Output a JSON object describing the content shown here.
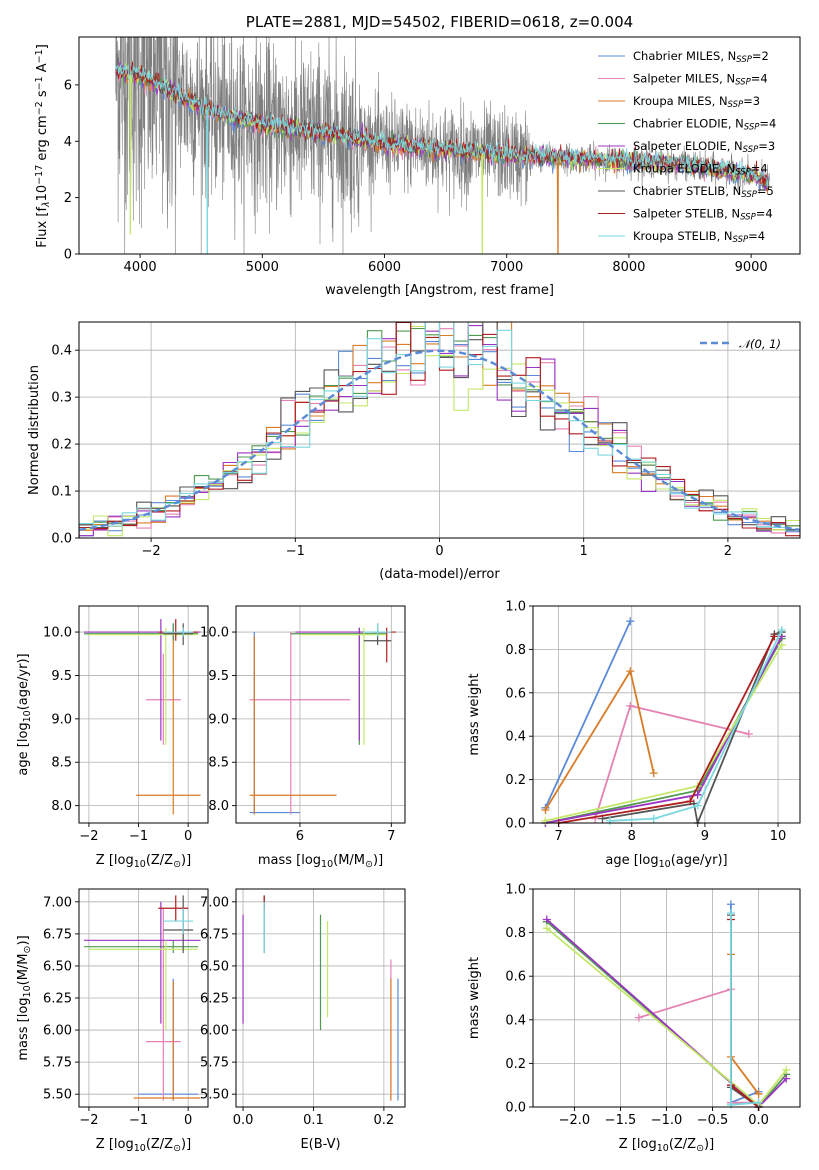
{
  "colors": [
    "#5b8bd6",
    "#e581b4",
    "#d97b27",
    "#4f9a4f",
    "#9b34c4",
    "#c4e86a",
    "#555555",
    "#b01d1d",
    "#7ad8e0"
  ],
  "gray": "#7f7f7f",
  "chart_data": [
    {
      "id": "spectrum",
      "type": "line",
      "title": "PLATE=2881, MJD=54502, FIBERID=0618, z=0.004",
      "xlabel": "wavelength [Angstrom, rest frame]",
      "ylabel": "Flux [f$_\\lambda$10$^{-17}$ erg cm$^{-2}$ s$^{-1}$ A$^{-1}$]",
      "ylabel_parts": {
        "pre": "Flux [f",
        "sub": "λ",
        "mid": "10",
        "sup1": "−17",
        "mid2": " erg cm",
        "sup2": "−2",
        "mid3": " s",
        "sup3": "−1",
        "mid4": " A",
        "sup4": "−1",
        "post": "]"
      },
      "xlim": [
        3500,
        9400
      ],
      "ylim": [
        0,
        7.7
      ],
      "xticks": [
        4000,
        5000,
        6000,
        7000,
        8000,
        9000
      ],
      "yticks": [
        0,
        2,
        4,
        6
      ],
      "legend_position": "top-right",
      "legend": [
        {
          "text": "Chabrier MILES, N",
          "sub": "SSP",
          "post": "=2"
        },
        {
          "text": "Salpeter MILES, N",
          "sub": "SSP",
          "post": "=4"
        },
        {
          "text": "Kroupa MILES, N",
          "sub": "SSP",
          "post": "=3"
        },
        {
          "text": "Chabrier ELODIE, N",
          "sub": "SSP",
          "post": "=4"
        },
        {
          "text": "Salpeter ELODIE, N",
          "sub": "SSP",
          "post": "=3"
        },
        {
          "text": "Kroupa ELODIE, N",
          "sub": "SSP",
          "post": "=4"
        },
        {
          "text": "Chabrier STELIB, N",
          "sub": "SSP",
          "post": "=5"
        },
        {
          "text": "Salpeter STELIB, N",
          "sub": "SSP",
          "post": "=4"
        },
        {
          "text": "Kroupa STELIB, N",
          "sub": "SSP",
          "post": "=4"
        }
      ],
      "continuum": [
        [
          3800,
          6.5
        ],
        [
          3900,
          6.4
        ],
        [
          4000,
          6.3
        ],
        [
          4200,
          5.9
        ],
        [
          4500,
          5.2
        ],
        [
          4800,
          4.8
        ],
        [
          5000,
          4.6
        ],
        [
          5500,
          4.3
        ],
        [
          6000,
          3.9
        ],
        [
          6500,
          3.7
        ],
        [
          7000,
          3.5
        ],
        [
          7500,
          3.4
        ],
        [
          8000,
          3.3
        ],
        [
          8500,
          3.15
        ],
        [
          9000,
          2.8
        ],
        [
          9150,
          2.5
        ]
      ],
      "drops": [
        {
          "x": 3920,
          "y": 0.7,
          "series": 5
        },
        {
          "x": 4550,
          "y": 0,
          "series": 8
        },
        {
          "x": 6800,
          "y": 0,
          "series": 5
        },
        {
          "x": 7420,
          "y": 0,
          "series": 2
        }
      ]
    },
    {
      "id": "residuals",
      "type": "histogram",
      "xlabel": "(data-model)/error",
      "ylabel": "Normed distribution",
      "xlim": [
        -2.5,
        2.5
      ],
      "ylim": [
        0,
        0.46
      ],
      "xticks": [
        -2,
        -1,
        0,
        1,
        2
      ],
      "yticks": [
        0.0,
        0.1,
        0.2,
        0.3,
        0.4
      ],
      "legend_position": "top-right",
      "legend": [
        {
          "text": "𝒩(0, 1)",
          "line": "dashed"
        }
      ],
      "bin_width": 0.1
    },
    {
      "id": "age_vs_Z",
      "type": "errorbar",
      "xlabel": "Z [log$_{10}$(Z/Z$_\\odot$)]",
      "ylabel": "age  [log$_{10}$(age/yr)]",
      "xlim": [
        -2.2,
        0.4
      ],
      "ylim": [
        7.8,
        10.3
      ],
      "xticks": [
        -2,
        -1,
        0
      ],
      "yticks": [
        8.0,
        8.5,
        9.0,
        9.5,
        10.0
      ],
      "bars": [
        {
          "x": -0.3,
          "y": 10.0,
          "xlo": -2.05,
          "xhi": 0.2,
          "ylo": 9.9,
          "yhi": 10.1,
          "c": 0
        },
        {
          "x": -0.5,
          "y": 9.22,
          "xlo": -0.85,
          "xhi": -0.15,
          "ylo": 8.7,
          "yhi": 9.75,
          "c": 1
        },
        {
          "x": -0.3,
          "y": 8.12,
          "xlo": -1.05,
          "xhi": 0.25,
          "ylo": 7.9,
          "yhi": 10.0,
          "c": 2
        },
        {
          "x": -0.3,
          "y": 9.98,
          "xlo": -2.1,
          "xhi": 0.2,
          "ylo": 9.9,
          "yhi": 10.1,
          "c": 3
        },
        {
          "x": -0.55,
          "y": 10.0,
          "xlo": -2.1,
          "xhi": 0.25,
          "ylo": 8.75,
          "yhi": 10.15,
          "c": 4
        },
        {
          "x": -0.45,
          "y": 9.97,
          "xlo": -2.0,
          "xhi": 0.2,
          "ylo": 8.7,
          "yhi": 10.05,
          "c": 5
        },
        {
          "x": -0.1,
          "y": 9.98,
          "xlo": -0.5,
          "xhi": 0.1,
          "ylo": 9.85,
          "yhi": 10.1,
          "c": 6
        },
        {
          "x": -0.25,
          "y": 10.0,
          "xlo": -0.6,
          "xhi": 0.2,
          "ylo": 9.9,
          "yhi": 10.15,
          "c": 7
        },
        {
          "x": -0.1,
          "y": 10.0,
          "xlo": -0.5,
          "xhi": 0.1,
          "ylo": 9.95,
          "yhi": 10.05,
          "c": 8
        }
      ]
    },
    {
      "id": "age_vs_mass",
      "type": "errorbar",
      "xlabel": "mass [log$_{10}$(M/M$_\\odot$)]",
      "ylabel": "",
      "xlim": [
        5.3,
        7.15
      ],
      "ylim": [
        7.8,
        10.3
      ],
      "xticks": [
        6,
        7
      ],
      "yticks": [
        8.0,
        8.5,
        9.0,
        9.5,
        10.0
      ],
      "bars": [
        {
          "x": 5.5,
          "y": 7.92,
          "xlo": 5.45,
          "xhi": 6.0,
          "ylo": 7.9,
          "yhi": 10.0,
          "c": 0
        },
        {
          "x": 5.9,
          "y": 9.22,
          "xlo": 5.45,
          "xhi": 6.55,
          "ylo": 7.9,
          "yhi": 10.0,
          "c": 1
        },
        {
          "x": 5.5,
          "y": 8.12,
          "xlo": 5.45,
          "xhi": 6.4,
          "ylo": 7.9,
          "yhi": 9.95,
          "c": 2
        },
        {
          "x": 6.65,
          "y": 9.98,
          "xlo": 5.9,
          "xhi": 6.95,
          "ylo": 8.7,
          "yhi": 10.05,
          "c": 3
        },
        {
          "x": 6.65,
          "y": 10.0,
          "xlo": 5.95,
          "xhi": 7.0,
          "ylo": 8.75,
          "yhi": 10.05,
          "c": 4
        },
        {
          "x": 6.7,
          "y": 9.97,
          "xlo": 6.0,
          "xhi": 6.95,
          "ylo": 8.7,
          "yhi": 10.05,
          "c": 5
        },
        {
          "x": 6.85,
          "y": 9.9,
          "xlo": 6.7,
          "xhi": 7.0,
          "ylo": 9.85,
          "yhi": 10.1,
          "c": 6
        },
        {
          "x": 6.95,
          "y": 10.0,
          "xlo": 6.8,
          "xhi": 7.05,
          "ylo": 9.65,
          "yhi": 10.05,
          "c": 7
        },
        {
          "x": 6.85,
          "y": 10.0,
          "xlo": 6.7,
          "xhi": 7.0,
          "ylo": 9.95,
          "yhi": 10.1,
          "c": 8
        }
      ]
    },
    {
      "id": "weight_vs_age",
      "type": "line",
      "xlabel": "age  [log$_{10}$(age/yr)]",
      "ylabel": "mass weight",
      "xlim": [
        6.65,
        10.3
      ],
      "ylim": [
        0,
        1.0
      ],
      "xticks": [
        7,
        8,
        9,
        10
      ],
      "yticks": [
        0.0,
        0.2,
        0.4,
        0.6,
        0.8,
        1.0
      ],
      "series": [
        {
          "c": 0,
          "pts": [
            [
              6.82,
              0.07
            ],
            [
              7.98,
              0.93
            ]
          ]
        },
        {
          "c": 1,
          "pts": [
            [
              7.5,
              0.02
            ],
            [
              7.98,
              0.54
            ],
            [
              9.6,
              0.41
            ]
          ]
        },
        {
          "c": 2,
          "pts": [
            [
              6.82,
              0.06
            ],
            [
              7.98,
              0.7
            ],
            [
              8.3,
              0.23
            ]
          ]
        },
        {
          "c": 3,
          "pts": [
            [
              6.82,
              0.0
            ],
            [
              8.9,
              0.15
            ],
            [
              10.05,
              0.85
            ]
          ]
        },
        {
          "c": 4,
          "pts": [
            [
              6.82,
              0.0
            ],
            [
              8.9,
              0.13
            ],
            [
              10.05,
              0.86
            ]
          ]
        },
        {
          "c": 5,
          "pts": [
            [
              6.82,
              0.01
            ],
            [
              8.9,
              0.17
            ],
            [
              10.05,
              0.82
            ]
          ]
        },
        {
          "c": 6,
          "pts": [
            [
              7.6,
              0.02
            ],
            [
              8.85,
              0.09
            ],
            [
              8.9,
              0.0
            ],
            [
              9.95,
              0.87
            ],
            [
              10.05,
              0.88
            ]
          ]
        },
        {
          "c": 7,
          "pts": [
            [
              7.0,
              0.0
            ],
            [
              8.8,
              0.1
            ],
            [
              9.95,
              0.86
            ]
          ]
        },
        {
          "c": 8,
          "pts": [
            [
              7.7,
              0.01
            ],
            [
              8.3,
              0.02
            ],
            [
              8.9,
              0.08
            ],
            [
              10.05,
              0.89
            ]
          ]
        }
      ]
    },
    {
      "id": "mass_vs_Z",
      "type": "errorbar",
      "xlabel": "Z [log$_{10}$(Z/Z$_\\odot$)]",
      "ylabel": "mass [log$_{10}$(M/M$_\\odot$)]",
      "xlim": [
        -2.2,
        0.4
      ],
      "ylim": [
        5.4,
        7.1
      ],
      "xticks": [
        -2,
        -1,
        0
      ],
      "yticks": [
        5.5,
        5.75,
        6.0,
        6.25,
        6.5,
        6.75,
        7.0
      ],
      "bars": [
        {
          "x": -0.3,
          "y": 5.5,
          "xlo": -1.0,
          "xhi": 0.2,
          "ylo": 5.45,
          "yhi": 6.4,
          "c": 0
        },
        {
          "x": -0.5,
          "y": 5.91,
          "xlo": -0.85,
          "xhi": -0.15,
          "ylo": 5.45,
          "yhi": 6.95,
          "c": 1
        },
        {
          "x": -0.3,
          "y": 5.47,
          "xlo": -1.1,
          "xhi": 0.25,
          "ylo": 5.45,
          "yhi": 6.38,
          "c": 2
        },
        {
          "x": -0.3,
          "y": 6.65,
          "xlo": -2.1,
          "xhi": 0.2,
          "ylo": 6.6,
          "yhi": 6.7,
          "c": 3
        },
        {
          "x": -0.55,
          "y": 6.7,
          "xlo": -2.1,
          "xhi": 0.25,
          "ylo": 6.05,
          "yhi": 7.0,
          "c": 4
        },
        {
          "x": -0.45,
          "y": 6.63,
          "xlo": -2.0,
          "xhi": 0.2,
          "ylo": 6.0,
          "yhi": 6.7,
          "c": 5
        },
        {
          "x": -0.1,
          "y": 6.78,
          "xlo": -0.5,
          "xhi": 0.1,
          "ylo": 6.6,
          "yhi": 7.05,
          "c": 6
        },
        {
          "x": -0.25,
          "y": 6.95,
          "xlo": -0.6,
          "xhi": 0.0,
          "ylo": 6.85,
          "yhi": 7.05,
          "c": 7
        },
        {
          "x": -0.1,
          "y": 6.85,
          "xlo": -0.5,
          "xhi": 0.1,
          "ylo": 6.75,
          "yhi": 6.95,
          "c": 8
        }
      ]
    },
    {
      "id": "mass_vs_EBV",
      "type": "errorbar",
      "xlabel": "E(B-V)",
      "ylabel": "",
      "xlim": [
        -0.01,
        0.23
      ],
      "ylim": [
        5.4,
        7.1
      ],
      "xticks": [
        0.0,
        0.1,
        0.2
      ],
      "yticks": [
        5.5,
        5.75,
        6.0,
        6.25,
        6.5,
        6.75,
        7.0
      ],
      "bars": [
        {
          "x": 0.22,
          "y": 5.5,
          "ylo": 5.45,
          "yhi": 6.4,
          "c": 0
        },
        {
          "x": 0.21,
          "y": 5.91,
          "ylo": 5.45,
          "yhi": 6.55,
          "c": 1
        },
        {
          "x": 0.21,
          "y": 5.5,
          "ylo": 5.45,
          "yhi": 6.4,
          "c": 2
        },
        {
          "x": 0.11,
          "y": 6.6,
          "ylo": 6.0,
          "yhi": 6.9,
          "c": 3
        },
        {
          "x": 0.0,
          "y": 6.6,
          "ylo": 6.05,
          "yhi": 6.9,
          "c": 4
        },
        {
          "x": 0.12,
          "y": 6.5,
          "ylo": 6.1,
          "yhi": 6.85,
          "c": 5
        },
        {
          "x": 0.03,
          "y": 6.8,
          "ylo": 6.6,
          "yhi": 7.05,
          "c": 6
        },
        {
          "x": 0.03,
          "y": 7.0,
          "ylo": 6.95,
          "yhi": 7.05,
          "c": 7
        },
        {
          "x": 0.03,
          "y": 6.8,
          "ylo": 6.6,
          "yhi": 7.0,
          "c": 8
        }
      ]
    },
    {
      "id": "weight_vs_Z",
      "type": "line",
      "xlabel": "Z [log$_{10}$(Z/Z$_\\odot$)]",
      "ylabel": "mass weight",
      "xlim": [
        -2.45,
        0.45
      ],
      "ylim": [
        0,
        1.0
      ],
      "xticks": [
        -2.0,
        -1.5,
        -1.0,
        -0.5,
        0.0
      ],
      "yticks": [
        0.0,
        0.2,
        0.4,
        0.6,
        0.8,
        1.0
      ],
      "series": [
        {
          "c": 0,
          "pts": [
            [
              -0.3,
              0.93
            ],
            [
              -0.3,
              0.02
            ],
            [
              0.0,
              0.07
            ]
          ]
        },
        {
          "c": 1,
          "pts": [
            [
              -1.3,
              0.41
            ],
            [
              -0.3,
              0.54
            ],
            [
              -0.3,
              0.02
            ],
            [
              0.0,
              0.02
            ]
          ]
        },
        {
          "c": 2,
          "pts": [
            [
              -0.3,
              0.7
            ],
            [
              -0.3,
              0.23
            ],
            [
              0.0,
              0.06
            ]
          ]
        },
        {
          "c": 3,
          "pts": [
            [
              -2.3,
              0.85
            ],
            [
              0.0,
              0.0
            ],
            [
              0.3,
              0.15
            ]
          ]
        },
        {
          "c": 4,
          "pts": [
            [
              -2.3,
              0.86
            ],
            [
              0.0,
              0.0
            ],
            [
              0.3,
              0.13
            ]
          ]
        },
        {
          "c": 5,
          "pts": [
            [
              -2.3,
              0.82
            ],
            [
              0.0,
              0.01
            ],
            [
              0.3,
              0.17
            ]
          ]
        },
        {
          "c": 6,
          "pts": [
            [
              -0.3,
              0.88
            ],
            [
              -0.3,
              0.09
            ],
            [
              0.0,
              0.0
            ]
          ]
        },
        {
          "c": 7,
          "pts": [
            [
              -0.3,
              0.86
            ],
            [
              -0.3,
              0.1
            ],
            [
              0.0,
              0.0
            ]
          ]
        },
        {
          "c": 8,
          "pts": [
            [
              -0.3,
              0.89
            ],
            [
              -0.3,
              0.01
            ],
            [
              0.0,
              0.02
            ]
          ]
        }
      ]
    }
  ]
}
